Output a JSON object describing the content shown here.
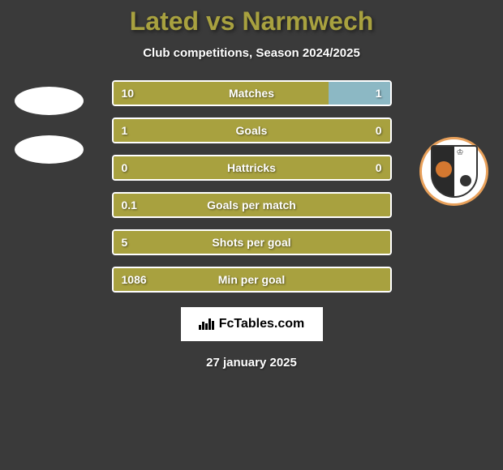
{
  "title": {
    "text": "Lated vs Narmwech",
    "color": "#a8a13f"
  },
  "subtitle": "Club competitions, Season 2024/2025",
  "colors": {
    "left_bar": "#a8a13f",
    "right_bar_alt": "#8cb8c4",
    "background": "#3a3a3a",
    "border": "#ffffff",
    "text": "#ffffff"
  },
  "stats": [
    {
      "label": "Matches",
      "left_value": "10",
      "right_value": "1",
      "left_pct": 78,
      "right_color": "#8cb8c4"
    },
    {
      "label": "Goals",
      "left_value": "1",
      "right_value": "0",
      "left_pct": 95,
      "right_color": "#a8a13f"
    },
    {
      "label": "Hattricks",
      "left_value": "0",
      "right_value": "0",
      "left_pct": 50,
      "right_color": "#a8a13f"
    },
    {
      "label": "Goals per match",
      "left_value": "0.1",
      "right_value": "",
      "left_pct": 100,
      "right_color": "#a8a13f"
    },
    {
      "label": "Shots per goal",
      "left_value": "5",
      "right_value": "",
      "left_pct": 100,
      "right_color": "#a8a13f"
    },
    {
      "label": "Min per goal",
      "left_value": "1086",
      "right_value": "",
      "left_pct": 100,
      "right_color": "#a8a13f"
    }
  ],
  "footer_brand": "FcTables.com",
  "date": "27 january 2025"
}
